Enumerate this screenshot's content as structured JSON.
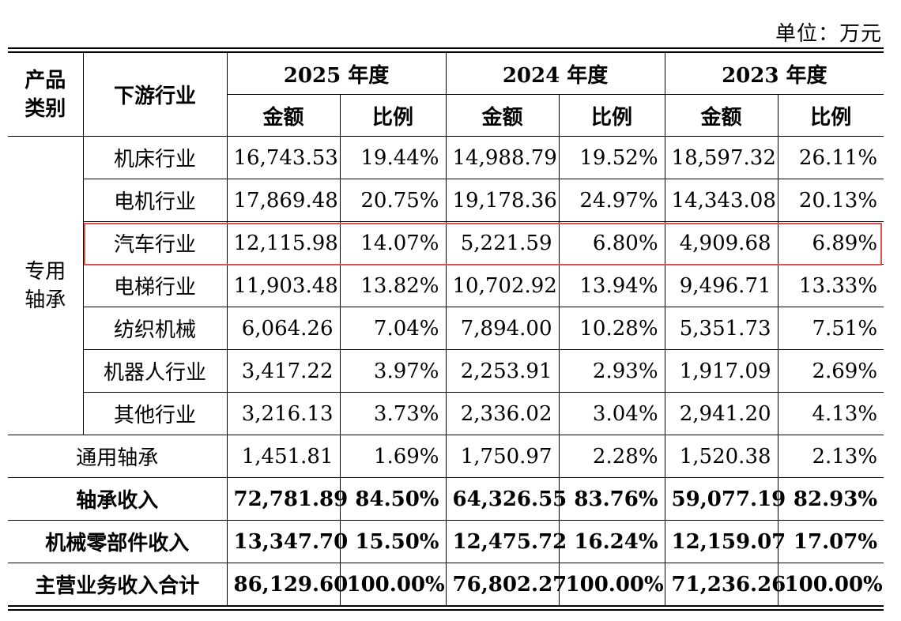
{
  "unit_label": "单位：万元",
  "header": {
    "category": "产品类别",
    "category_line1": "产品",
    "category_line2": "类别",
    "industry": "下游行业",
    "years": [
      "2025 年度",
      "2024 年度",
      "2023 年度"
    ],
    "amount": "金额",
    "ratio": "比例"
  },
  "special_bearing": {
    "label_line1": "专用",
    "label_line2": "轴承",
    "rows": [
      {
        "industry": "机床行业",
        "y2025": [
          "16,743.53",
          "19.44%"
        ],
        "y2024": [
          "14,988.79",
          "19.52%"
        ],
        "y2023": [
          "18,597.32",
          "26.11%"
        ]
      },
      {
        "industry": "电机行业",
        "y2025": [
          "17,869.48",
          "20.75%"
        ],
        "y2024": [
          "19,178.36",
          "24.97%"
        ],
        "y2023": [
          "14,343.08",
          "20.13%"
        ]
      },
      {
        "industry": "汽车行业",
        "y2025": [
          "12,115.98",
          "14.07%"
        ],
        "y2024": [
          "5,221.59",
          "6.80%"
        ],
        "y2023": [
          "4,909.68",
          "6.89%"
        ]
      },
      {
        "industry": "电梯行业",
        "y2025": [
          "11,903.48",
          "13.82%"
        ],
        "y2024": [
          "10,702.92",
          "13.94%"
        ],
        "y2023": [
          "9,496.71",
          "13.33%"
        ]
      },
      {
        "industry": "纺织机械",
        "y2025": [
          "6,064.26",
          "7.04%"
        ],
        "y2024": [
          "7,894.00",
          "10.28%"
        ],
        "y2023": [
          "5,351.73",
          "7.51%"
        ]
      },
      {
        "industry": "机器人行业",
        "y2025": [
          "3,417.22",
          "3.97%"
        ],
        "y2024": [
          "2,253.91",
          "2.93%"
        ],
        "y2023": [
          "1,917.09",
          "2.69%"
        ]
      },
      {
        "industry": "其他行业",
        "y2025": [
          "3,216.13",
          "3.73%"
        ],
        "y2024": [
          "2,336.02",
          "3.04%"
        ],
        "y2023": [
          "2,941.20",
          "4.13%"
        ]
      }
    ]
  },
  "general_bearing": {
    "label": "通用轴承",
    "y2025": [
      "1,451.81",
      "1.69%"
    ],
    "y2024": [
      "1,750.97",
      "2.28%"
    ],
    "y2023": [
      "1,520.38",
      "2.13%"
    ]
  },
  "totals": [
    {
      "label": "轴承收入",
      "y2025": [
        "72,781.89",
        "84.50%"
      ],
      "y2024": [
        "64,326.55",
        "83.76%"
      ],
      "y2023": [
        "59,077.19",
        "82.93%"
      ]
    },
    {
      "label": "机械零部件收入",
      "y2025": [
        "13,347.70",
        "15.50%"
      ],
      "y2024": [
        "12,475.72",
        "16.24%"
      ],
      "y2023": [
        "12,159.07",
        "17.07%"
      ]
    },
    {
      "label": "主营业务收入合计",
      "y2025": [
        "86,129.60",
        "100.00%"
      ],
      "y2024": [
        "76,802.27",
        "100.00%"
      ],
      "y2023": [
        "71,236.26",
        "100.00%"
      ]
    }
  ],
  "highlight_color": "#e05050"
}
